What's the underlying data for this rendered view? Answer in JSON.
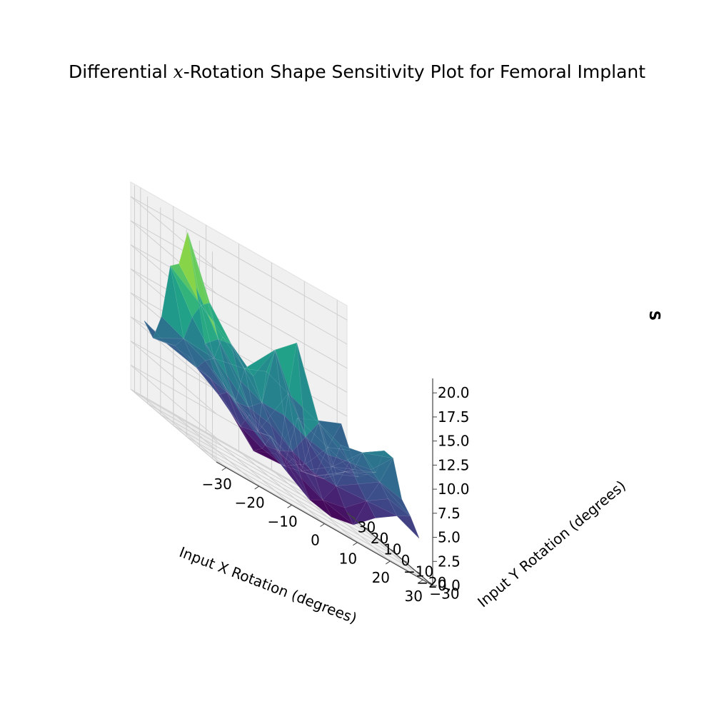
{
  "title_parts": [
    "Differential ",
    "x",
    "-Rotation Shape Sensitivity Plot for Femoral Implant"
  ],
  "chart_data": {
    "type": "surface3d",
    "title": "Differential x-Rotation Shape Sensitivity Plot for Femoral Implant",
    "xlabel": "Input X Rotation (degrees)",
    "ylabel": "Input Y Rotation (degrees)",
    "zlabel": "S",
    "colormap": "viridis",
    "xlim": [
      -33,
      33
    ],
    "ylim": [
      -33,
      33
    ],
    "zlim": [
      0,
      21.5
    ],
    "x_ticks": [
      -30,
      -20,
      -10,
      0,
      10,
      20,
      30
    ],
    "y_ticks": [
      -30,
      -20,
      -10,
      0,
      10,
      20,
      30
    ],
    "z_ticks": [
      0.0,
      2.5,
      5.0,
      7.5,
      10.0,
      12.5,
      15.0,
      17.5,
      20.0
    ],
    "x_tick_labels": [
      "−30",
      "−20",
      "−10",
      "0",
      "10",
      "20",
      "30"
    ],
    "y_tick_labels": [
      "−30",
      "−20",
      "−10",
      "0",
      "10",
      "20",
      "30"
    ],
    "z_tick_labels": [
      "0.0",
      "2.5",
      "5.0",
      "7.5",
      "10.0",
      "12.5",
      "15.0",
      "17.5",
      "20.0"
    ],
    "grid": true,
    "x": [
      -30,
      -23.3,
      -16.7,
      -10,
      -3.3,
      3.3,
      10,
      16.7,
      23.3,
      30
    ],
    "y": [
      -30,
      -23.3,
      -16.7,
      -10,
      -3.3,
      3.3,
      10,
      16.7,
      23.3,
      30
    ],
    "z": [
      [
        8.5,
        6.0,
        4.5,
        3.0,
        1.5,
        1.0,
        1.5,
        3.5,
        5.0,
        4.0
      ],
      [
        9.0,
        7.0,
        5.5,
        4.5,
        3.0,
        2.0,
        2.5,
        4.5,
        6.0,
        5.5
      ],
      [
        11.0,
        9.0,
        7.0,
        6.5,
        5.0,
        4.0,
        4.0,
        5.5,
        7.0,
        6.5
      ],
      [
        16.0,
        12.0,
        9.0,
        8.0,
        8.0,
        7.0,
        6.5,
        7.0,
        7.5,
        10.0
      ],
      [
        21.0,
        15.0,
        12.0,
        10.0,
        14.0,
        16.0,
        9.0,
        8.0,
        8.5,
        10.0
      ],
      [
        17.0,
        14.0,
        12.0,
        10.0,
        11.0,
        10.0,
        6.0,
        5.0,
        6.0,
        7.0
      ],
      [
        16.0,
        12.0,
        9.0,
        6.0,
        4.0,
        3.0,
        2.5,
        3.0,
        5.0,
        6.0
      ],
      [
        10.0,
        9.0,
        8.0,
        6.0,
        5.0,
        4.0,
        3.0,
        2.5,
        4.0,
        5.0
      ],
      [
        7.0,
        7.5,
        6.5,
        5.0,
        3.0,
        2.0,
        1.5,
        3.0,
        6.0,
        7.0
      ],
      [
        8.0,
        7.0,
        7.0,
        6.0,
        3.5,
        1.0,
        2.0,
        7.0,
        8.0,
        9.0
      ]
    ]
  }
}
